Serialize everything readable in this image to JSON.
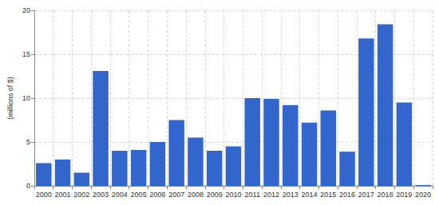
{
  "chart_data": {
    "type": "bar",
    "y_label": "(millions of $)",
    "categories": [
      "2000",
      "2001",
      "2002",
      "2003",
      "2004",
      "2005",
      "2006",
      "2007",
      "2008",
      "2009",
      "2010",
      "2011",
      "2012",
      "2013",
      "2014",
      "2015",
      "2016",
      "2017",
      "2018",
      "2019",
      "2020"
    ],
    "values": [
      2.6,
      3.0,
      1.5,
      13.1,
      4.0,
      4.1,
      5.0,
      7.5,
      5.5,
      4.0,
      4.5,
      10.0,
      9.9,
      9.2,
      7.2,
      8.6,
      3.9,
      16.8,
      18.4,
      9.5,
      0.1
    ],
    "color": "#3366cc",
    "ylim": [
      0,
      20
    ],
    "yticks": [
      0,
      5,
      10,
      15,
      20
    ],
    "grid": true
  }
}
